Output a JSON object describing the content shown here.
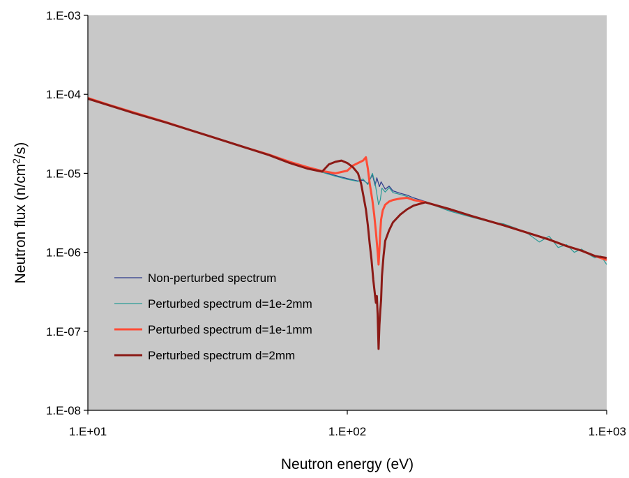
{
  "chart_data": {
    "type": "line",
    "title": "",
    "xlabel": "Neutron energy (eV)",
    "ylabel_main": "Neutron flux (n/cm",
    "ylabel_sup": "2",
    "ylabel_tail": "/s)",
    "xscale": "log",
    "yscale": "log",
    "xlim": [
      10,
      1000
    ],
    "ylim": [
      1e-08,
      0.001
    ],
    "x_ticks": [
      {
        "value": 10,
        "label": "1.E+01"
      },
      {
        "value": 100,
        "label": "1.E+02"
      },
      {
        "value": 1000,
        "label": "1.E+03"
      }
    ],
    "y_ticks": [
      {
        "value": 0.001,
        "label": "1.E-03"
      },
      {
        "value": 0.0001,
        "label": "1.E-04"
      },
      {
        "value": 1e-05,
        "label": "1.E-05"
      },
      {
        "value": 1e-06,
        "label": "1.E-06"
      },
      {
        "value": 1e-07,
        "label": "1.E-07"
      },
      {
        "value": 1e-08,
        "label": "1.E-08"
      }
    ],
    "grid": false,
    "plot_background": "#c8c8c8",
    "legend_position": "bottom-left",
    "series": [
      {
        "name": "Non-perturbed spectrum",
        "color": "#2d3a8c",
        "width": 1.2,
        "x": [
          10,
          12,
          15,
          20,
          25,
          30,
          40,
          50,
          60,
          70,
          80,
          90,
          100,
          110,
          115,
          120,
          125,
          128,
          130,
          133,
          135,
          140,
          145,
          150,
          160,
          170,
          180,
          200,
          250,
          300,
          350,
          400,
          500,
          600,
          700,
          800,
          900,
          1000
        ],
        "y": [
          8.8e-05,
          7.3e-05,
          5.8e-05,
          4.4e-05,
          3.5e-05,
          2.9e-05,
          2.15e-05,
          1.72e-05,
          1.4e-05,
          1.2e-05,
          1.05e-05,
          9.4e-06,
          8.6e-06,
          8e-06,
          8.2e-06,
          7.4e-06,
          9.6e-06,
          7e-06,
          8.8e-06,
          6.8e-06,
          7.8e-06,
          6.3e-06,
          6.9e-06,
          6e-06,
          5.6e-06,
          5.3e-06,
          4.9e-06,
          4.4e-06,
          3.4e-06,
          2.85e-06,
          2.5e-06,
          2.2e-06,
          1.75e-06,
          1.45e-06,
          1.2e-06,
          1.05e-06,
          9e-07,
          8e-07
        ]
      },
      {
        "name": "Perturbed spectrum d=1e-2mm",
        "color": "#2a9a96",
        "width": 1.2,
        "x": [
          10,
          12,
          15,
          20,
          25,
          30,
          40,
          50,
          60,
          70,
          80,
          90,
          100,
          110,
          115,
          120,
          125,
          128,
          130,
          132,
          134,
          136,
          140,
          145,
          150,
          160,
          170,
          180,
          200,
          250,
          300,
          350,
          400,
          450,
          500,
          550,
          600,
          650,
          700,
          750,
          800,
          850,
          900,
          950,
          1000
        ],
        "y": [
          8.7e-05,
          7.2e-05,
          5.7e-05,
          4.35e-05,
          3.45e-05,
          2.85e-05,
          2.1e-05,
          1.7e-05,
          1.38e-05,
          1.18e-05,
          1.03e-05,
          9.2e-06,
          8.4e-06,
          7.9e-06,
          8.5e-06,
          7.2e-06,
          1e-05,
          7.5e-06,
          5.5e-06,
          4e-06,
          4.6e-06,
          6.5e-06,
          5.8e-06,
          6.6e-06,
          5.7e-06,
          5.4e-06,
          5.1e-06,
          4.7e-06,
          4.3e-06,
          3.3e-06,
          2.8e-06,
          2.45e-06,
          2.3e-06,
          2e-06,
          1.7e-06,
          1.35e-06,
          1.6e-06,
          1.15e-06,
          1.25e-06,
          1e-06,
          1.1e-06,
          9.5e-07,
          8.5e-07,
          9e-07,
          7e-07
        ]
      },
      {
        "name": "Perturbed spectrum d=1e-1mm",
        "color": "#ff4c36",
        "width": 3,
        "x": [
          10,
          12,
          15,
          20,
          25,
          30,
          40,
          50,
          60,
          70,
          80,
          90,
          100,
          105,
          110,
          115,
          118,
          120,
          122,
          125,
          127,
          129,
          131,
          132,
          133,
          134,
          135,
          137,
          140,
          145,
          150,
          160,
          170,
          180,
          200,
          250,
          300,
          350,
          400,
          500,
          600,
          700,
          800,
          900,
          1000
        ],
        "y": [
          9e-05,
          7.4e-05,
          5.9e-05,
          4.45e-05,
          3.5e-05,
          2.9e-05,
          2.15e-05,
          1.72e-05,
          1.4e-05,
          1.2e-05,
          1.07e-05,
          1e-05,
          1.08e-05,
          1.25e-05,
          1.35e-05,
          1.45e-05,
          1.6e-05,
          1.15e-05,
          7.5e-06,
          4.5e-06,
          3e-06,
          1.8e-06,
          1e-06,
          7e-07,
          1.1e-06,
          1.8e-06,
          2.6e-06,
          3.4e-06,
          4e-06,
          4.4e-06,
          4.6e-06,
          4.8e-06,
          4.9e-06,
          4.6e-06,
          4.3e-06,
          3.5e-06,
          2.9e-06,
          2.5e-06,
          2.2e-06,
          1.75e-06,
          1.45e-06,
          1.2e-06,
          1.05e-06,
          9e-07,
          8e-07
        ]
      },
      {
        "name": "Perturbed spectrum d=2mm",
        "color": "#8b1a16",
        "width": 3,
        "x": [
          10,
          12,
          15,
          20,
          25,
          30,
          40,
          50,
          60,
          70,
          80,
          85,
          90,
          95,
          100,
          105,
          110,
          113,
          115,
          118,
          120,
          122,
          124,
          126,
          128,
          129,
          130,
          131,
          132,
          133,
          134,
          135,
          136,
          138,
          140,
          145,
          150,
          160,
          170,
          180,
          190,
          200,
          250,
          300,
          350,
          400,
          500,
          600,
          700,
          800,
          900,
          1000
        ],
        "y": [
          8.8e-05,
          7.3e-05,
          5.8e-05,
          4.4e-05,
          3.5e-05,
          2.9e-05,
          2.15e-05,
          1.7e-05,
          1.35e-05,
          1.15e-05,
          1.05e-05,
          1.3e-05,
          1.4e-05,
          1.45e-05,
          1.35e-05,
          1.2e-05,
          1e-05,
          7.5e-06,
          5.5e-06,
          3.5e-06,
          2.2e-06,
          1.3e-06,
          8e-07,
          4.5e-07,
          2.8e-07,
          2.3e-07,
          2.8e-07,
          1.6e-07,
          6e-08,
          1.2e-07,
          1.8e-07,
          2.5e-07,
          5e-07,
          9e-07,
          1.4e-06,
          1.9e-06,
          2.4e-06,
          3e-06,
          3.5e-06,
          3.9e-06,
          4.1e-06,
          4.3e-06,
          3.5e-06,
          2.9e-06,
          2.5e-06,
          2.2e-06,
          1.75e-06,
          1.45e-06,
          1.2e-06,
          1.05e-06,
          9e-07,
          8.5e-07
        ]
      }
    ]
  }
}
